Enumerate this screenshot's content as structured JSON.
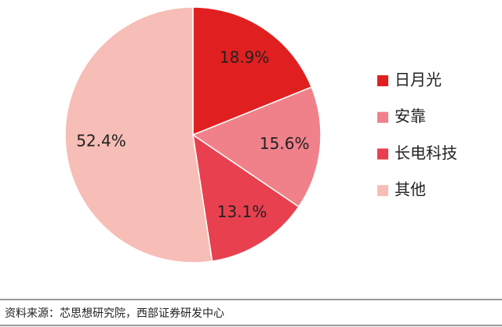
{
  "chart_data": {
    "type": "pie",
    "categories": [
      "日月光",
      "安靠",
      "长电科技",
      "其他"
    ],
    "values": [
      18.9,
      15.6,
      13.1,
      52.4
    ],
    "value_labels": [
      "18.9%",
      "15.6%",
      "13.1%",
      "52.4%"
    ],
    "colors": [
      "#e02020",
      "#f0808a",
      "#e8404f",
      "#f6beb6"
    ],
    "legend": "right",
    "source": "资料来源：芯思想研究院，西部证券研发中心"
  }
}
